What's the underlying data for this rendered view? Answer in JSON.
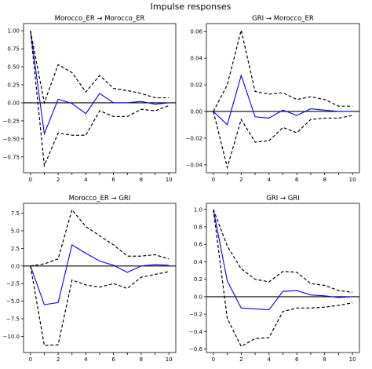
{
  "figure": {
    "title": "Impulse responses"
  },
  "style": {
    "response_color": "#0000ff",
    "band_color": "#000000",
    "zero_line_color": "#000000"
  },
  "chart_data": [
    {
      "type": "line",
      "title": "Morocco_ER → Morocco_ER",
      "x": [
        0,
        1,
        2,
        3,
        4,
        5,
        6,
        7,
        8,
        9,
        10
      ],
      "xlim": [
        -0.5,
        10.5
      ],
      "ylim": [
        -0.97,
        1.1
      ],
      "xticks": [
        "0",
        "2",
        "4",
        "6",
        "8",
        "10"
      ],
      "yticks": [
        "1.00",
        "0.75",
        "0.50",
        "0.25",
        "0.00",
        "−0.25",
        "−0.50",
        "−0.75"
      ],
      "series": [
        {
          "role": "response",
          "values": [
            1.0,
            -0.43,
            0.05,
            -0.01,
            -0.15,
            0.13,
            0.0,
            0.0,
            0.02,
            -0.02,
            0.0
          ]
        },
        {
          "role": "upper",
          "values": [
            1.0,
            0.0,
            0.53,
            0.42,
            0.15,
            0.38,
            0.2,
            0.17,
            0.13,
            0.07,
            0.07
          ]
        },
        {
          "role": "lower",
          "values": [
            1.0,
            -0.87,
            -0.42,
            -0.45,
            -0.45,
            -0.11,
            -0.19,
            -0.19,
            -0.09,
            -0.11,
            -0.04
          ]
        }
      ]
    },
    {
      "type": "line",
      "title": "GRI → Morocco_ER",
      "x": [
        0,
        1,
        2,
        3,
        4,
        5,
        6,
        7,
        8,
        9,
        10
      ],
      "xlim": [
        -0.5,
        10.5
      ],
      "ylim": [
        -0.046,
        0.066
      ],
      "xticks": [
        "0",
        "2",
        "4",
        "6",
        "8",
        "10"
      ],
      "yticks": [
        "0.06",
        "0.04",
        "0.02",
        "0.00",
        "−0.02",
        "−0.04"
      ],
      "series": [
        {
          "role": "response",
          "values": [
            0.0,
            -0.01,
            0.027,
            -0.004,
            -0.005,
            0.001,
            -0.003,
            0.002,
            0.001,
            0.0,
            0.0
          ]
        },
        {
          "role": "upper",
          "values": [
            0.0,
            0.02,
            0.061,
            0.015,
            0.013,
            0.014,
            0.009,
            0.011,
            0.009,
            0.004,
            0.004
          ]
        },
        {
          "role": "lower",
          "values": [
            0.0,
            -0.042,
            -0.006,
            -0.023,
            -0.022,
            -0.012,
            -0.016,
            -0.006,
            -0.005,
            -0.005,
            -0.003
          ]
        }
      ]
    },
    {
      "type": "line",
      "title": "Morocco_ER → GRI",
      "x": [
        0,
        1,
        2,
        3,
        4,
        5,
        6,
        7,
        8,
        9,
        10
      ],
      "xlim": [
        -0.5,
        10.5
      ],
      "ylim": [
        -12.3,
        8.9
      ],
      "xticks": [
        "0",
        "2",
        "4",
        "6",
        "8",
        "10"
      ],
      "yticks": [
        "7.5",
        "5.0",
        "2.5",
        "0.0",
        "−2.5",
        "−5.0",
        "−7.5",
        "−10.0"
      ],
      "series": [
        {
          "role": "response",
          "values": [
            0.0,
            -5.5,
            -5.2,
            3.0,
            1.8,
            0.7,
            0.1,
            -0.9,
            0.0,
            0.2,
            0.1
          ]
        },
        {
          "role": "upper",
          "values": [
            0.0,
            0.3,
            1.0,
            8.0,
            5.6,
            4.3,
            3.0,
            1.4,
            1.4,
            1.6,
            1.0
          ]
        },
        {
          "role": "lower",
          "values": [
            0.0,
            -11.3,
            -11.2,
            -2.0,
            -2.7,
            -3.0,
            -2.5,
            -3.2,
            -1.6,
            -1.2,
            -0.8
          ]
        }
      ]
    },
    {
      "type": "line",
      "title": "GRI → GRI",
      "x": [
        0,
        1,
        2,
        3,
        4,
        5,
        6,
        7,
        8,
        9,
        10
      ],
      "xlim": [
        -0.5,
        10.5
      ],
      "ylim": [
        -0.64,
        1.07
      ],
      "xticks": [
        "0",
        "2",
        "4",
        "6",
        "8",
        "10"
      ],
      "yticks": [
        "1.0",
        "0.8",
        "0.6",
        "0.4",
        "0.2",
        "0.0",
        "−0.2",
        "−0.4",
        "−0.6"
      ],
      "series": [
        {
          "role": "response",
          "values": [
            1.0,
            0.18,
            -0.13,
            -0.14,
            -0.15,
            0.06,
            0.07,
            0.02,
            0.01,
            -0.01,
            0.0
          ]
        },
        {
          "role": "upper",
          "values": [
            1.0,
            0.58,
            0.32,
            0.2,
            0.17,
            0.29,
            0.28,
            0.15,
            0.13,
            0.07,
            0.05
          ]
        },
        {
          "role": "lower",
          "values": [
            1.0,
            -0.25,
            -0.57,
            -0.48,
            -0.47,
            -0.17,
            -0.13,
            -0.13,
            -0.12,
            -0.1,
            -0.07
          ]
        }
      ]
    }
  ]
}
